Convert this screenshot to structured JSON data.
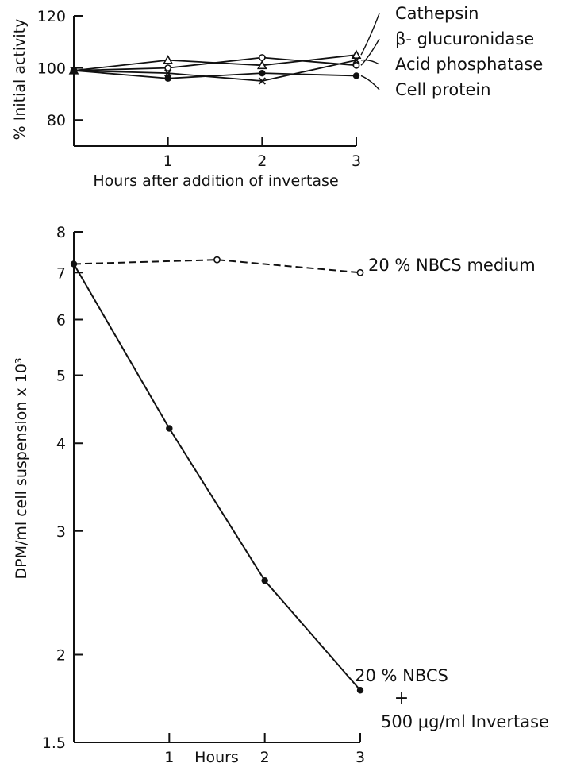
{
  "chart_data": [
    {
      "type": "line",
      "xlabel": "Hours after addition of invertase",
      "ylabel": "% Initial activity",
      "xlim": [
        0,
        3
      ],
      "ylim": [
        70,
        120
      ],
      "x_ticks": [
        1,
        2,
        3
      ],
      "y_ticks": [
        80,
        100,
        120
      ],
      "x_tick_labels": [
        "1",
        "2",
        "3"
      ],
      "y_tick_labels": [
        "80",
        "100",
        "120"
      ],
      "grid": false,
      "legend": "right, labels attached to line ends",
      "series": [
        {
          "name": "Cathepsin",
          "marker": "triangle",
          "x": [
            0,
            1,
            2,
            3
          ],
          "y": [
            99,
            103,
            101,
            105
          ]
        },
        {
          "name": "β- glucuronidase",
          "marker": "open-circle",
          "x": [
            0,
            1,
            2,
            3
          ],
          "y": [
            99,
            100,
            104,
            101
          ]
        },
        {
          "name": "Acid phosphatase",
          "marker": "cross",
          "x": [
            0,
            1,
            2,
            3
          ],
          "y": [
            99,
            98,
            95,
            103
          ]
        },
        {
          "name": "Cell protein",
          "marker": "filled-circle",
          "x": [
            0,
            1,
            2,
            3
          ],
          "y": [
            99,
            96,
            98,
            97
          ]
        }
      ]
    },
    {
      "type": "line",
      "xlabel": "Hours",
      "ylabel": "DPM/ml cell suspension x 10³",
      "xlim": [
        0,
        3
      ],
      "ylim": [
        1.5,
        8
      ],
      "yscale": "log",
      "x_ticks": [
        1,
        2,
        3
      ],
      "y_ticks": [
        1.5,
        2,
        3,
        4,
        5,
        6,
        7,
        8
      ],
      "x_tick_labels": [
        "1",
        "2",
        "3"
      ],
      "y_tick_labels": [
        "1.5",
        "2",
        "3",
        "4",
        "5",
        "6",
        "7",
        "8"
      ],
      "grid": false,
      "legend": "right, labels attached to line ends",
      "series": [
        {
          "name": "20 % NBCS medium",
          "style": "dashed",
          "marker": "open-circle",
          "x": [
            0,
            1.5,
            3
          ],
          "y": [
            7.2,
            7.3,
            7.0
          ]
        },
        {
          "name": "20 % NBCS + 500 μg/ml Invertase",
          "style": "solid",
          "marker": "filled-circle",
          "x": [
            0,
            1,
            2,
            3
          ],
          "y": [
            7.2,
            4.2,
            2.55,
            1.78
          ]
        }
      ],
      "annotations": {
        "medium_label": "20 % NBCS medium",
        "invertase_label_line1": "20 % NBCS",
        "invertase_label_line2": "+",
        "invertase_label_line3": "500 μg/ml Invertase"
      }
    }
  ],
  "colors": {
    "ink": "#111111",
    "background": "#ffffff"
  }
}
